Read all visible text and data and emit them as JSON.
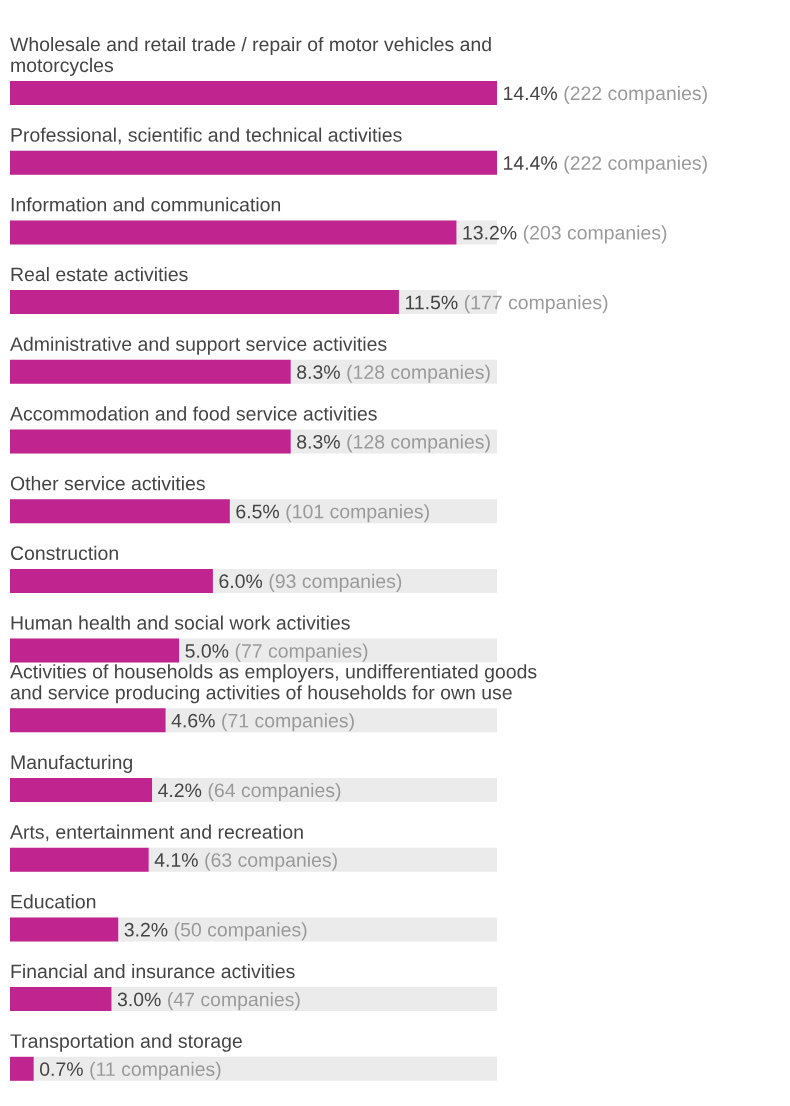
{
  "chart_data": {
    "type": "bar",
    "orientation": "horizontal",
    "color": "#c0248f",
    "categories": [
      "Wholesale and retail trade / repair of motor vehicles and\nmotorcycles",
      "Professional, scientific and technical activities",
      "Information and communication",
      "Real estate activities",
      "Administrative and support service activities",
      "Accommodation and food service activities",
      "Other service activities",
      "Construction",
      "Human health and social work activities",
      "Activities of households as employers, undifferentiated goods\nand service producing activities of households for own use",
      "Manufacturing",
      "Arts, entertainment and recreation",
      "Education",
      "Financial and insurance activities",
      "Transportation and storage"
    ],
    "values": [
      14.4,
      14.4,
      13.2,
      11.5,
      8.3,
      8.3,
      6.5,
      6.0,
      5.0,
      4.6,
      4.2,
      4.1,
      3.2,
      3.0,
      0.7
    ],
    "value_labels": [
      "14.4% (222 companies)",
      "14.4% (222 companies)",
      "13.2% (203 companies)",
      "11.5% (177 companies)",
      "8.3% (128 companies)",
      "8.3% (128 companies)",
      "6.5% (101 companies)",
      "6.0% (93 companies)",
      "5.0% (77 companies)",
      "4.6% (71 companies)",
      "4.2% (64 companies)",
      "4.1% (63 companies)",
      "3.2% (50 companies)",
      "3.0% (47 companies)",
      "0.7% (11 companies)"
    ],
    "legend": false
  }
}
